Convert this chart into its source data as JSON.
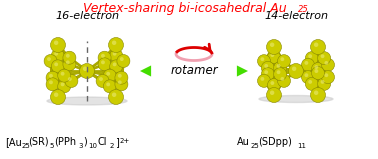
{
  "title_color": "#ff0000",
  "bg_color": "#ffffff",
  "left_label": "16-electron",
  "right_label": "14-electron",
  "rotamer_text": "rotamer",
  "arrow_color": "#44dd00",
  "rotamer_arrow_color": "#dd0000",
  "rotamer_ellipse_color": "#f0a0b0",
  "au_color": "#cccc00",
  "au_edge_color": "#888800",
  "au_bond_color": "#aaaa00",
  "shadow_color": "#bbbbbb"
}
